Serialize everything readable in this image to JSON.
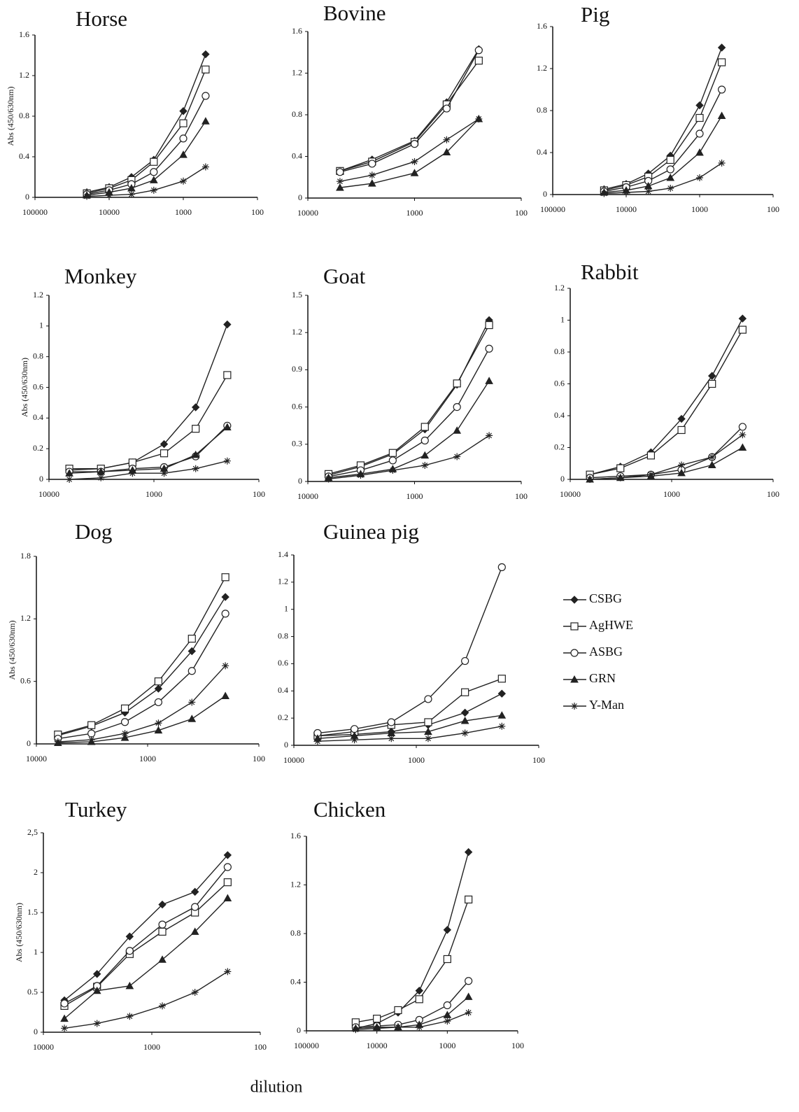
{
  "xlabel": "dilution",
  "chart_data": [
    {
      "type": "line",
      "title": "Horse",
      "ylabel": "Abs (450/630nm)",
      "xlog": true,
      "x": [
        20000,
        10000,
        5000,
        2500,
        1000,
        500
      ],
      "xlim": [
        100000,
        100
      ],
      "xticks": [
        100000,
        10000,
        1000,
        100
      ],
      "ylim": [
        0,
        1.6
      ],
      "yticks": [
        0,
        0.4,
        0.8,
        1.2,
        1.6
      ],
      "series": [
        {
          "name": "CSBG",
          "color": "#222",
          "marker": "diamond",
          "values": [
            0.05,
            0.1,
            0.2,
            0.37,
            0.85,
            1.41
          ]
        },
        {
          "name": "AgHWE",
          "color": "#222",
          "marker": "square",
          "values": [
            0.04,
            0.09,
            0.17,
            0.35,
            0.73,
            1.26
          ]
        },
        {
          "name": "ASBG",
          "color": "#222",
          "marker": "circle",
          "values": [
            0.03,
            0.07,
            0.13,
            0.25,
            0.58,
            1.0
          ]
        },
        {
          "name": "GRN",
          "color": "#222",
          "marker": "triangle",
          "values": [
            0.02,
            0.05,
            0.09,
            0.17,
            0.42,
            0.75
          ]
        },
        {
          "name": "Y-Man",
          "color": "#222",
          "marker": "star",
          "values": [
            0.01,
            0.02,
            0.03,
            0.07,
            0.16,
            0.3
          ]
        }
      ]
    },
    {
      "type": "line",
      "title": "Bovine",
      "xlog": true,
      "x": [
        5000,
        2500,
        1000,
        500,
        250
      ],
      "xlim": [
        10000,
        100
      ],
      "xticks": [
        10000,
        1000,
        100
      ],
      "ylim": [
        0,
        1.6
      ],
      "yticks": [
        0,
        0.4,
        0.8,
        1.2,
        1.6
      ],
      "series": [
        {
          "name": "CSBG",
          "color": "#222",
          "marker": "diamond",
          "values": [
            0.26,
            0.37,
            0.55,
            0.92,
            1.43
          ]
        },
        {
          "name": "AgHWE",
          "color": "#222",
          "marker": "square",
          "values": [
            0.26,
            0.35,
            0.54,
            0.9,
            1.32
          ]
        },
        {
          "name": "ASBG",
          "color": "#222",
          "marker": "circle",
          "values": [
            0.25,
            0.33,
            0.52,
            0.86,
            1.42
          ]
        },
        {
          "name": "GRN",
          "color": "#222",
          "marker": "triangle",
          "values": [
            0.1,
            0.14,
            0.24,
            0.44,
            0.76
          ]
        },
        {
          "name": "Y-Man",
          "color": "#222",
          "marker": "star",
          "values": [
            0.16,
            0.22,
            0.35,
            0.56,
            0.76
          ]
        }
      ]
    },
    {
      "type": "line",
      "title": "Pig",
      "xlog": true,
      "x": [
        20000,
        10000,
        5000,
        2500,
        1000,
        500
      ],
      "xlim": [
        100000,
        100
      ],
      "xticks": [
        100000,
        10000,
        1000,
        100
      ],
      "ylim": [
        0,
        1.6
      ],
      "yticks": [
        0,
        0.4,
        0.8,
        1.2,
        1.6
      ],
      "series": [
        {
          "name": "CSBG",
          "color": "#222",
          "marker": "diamond",
          "values": [
            0.05,
            0.1,
            0.2,
            0.37,
            0.85,
            1.4
          ]
        },
        {
          "name": "AgHWE",
          "color": "#222",
          "marker": "square",
          "values": [
            0.04,
            0.09,
            0.17,
            0.33,
            0.73,
            1.26
          ]
        },
        {
          "name": "ASBG",
          "color": "#222",
          "marker": "circle",
          "values": [
            0.03,
            0.07,
            0.13,
            0.24,
            0.58,
            1.0
          ]
        },
        {
          "name": "GRN",
          "color": "#222",
          "marker": "triangle",
          "values": [
            0.02,
            0.04,
            0.08,
            0.16,
            0.4,
            0.75
          ]
        },
        {
          "name": "Y-Man",
          "color": "#222",
          "marker": "star",
          "values": [
            0.01,
            0.02,
            0.03,
            0.06,
            0.16,
            0.3
          ]
        }
      ]
    },
    {
      "type": "line",
      "title": "Monkey",
      "ylabel": "Abs (450/630nm)",
      "xlog": true,
      "x": [
        6400,
        3200,
        1600,
        800,
        400,
        200
      ],
      "xlim": [
        10000,
        100
      ],
      "xticks": [
        10000,
        1000,
        100
      ],
      "ylim": [
        0,
        1.2
      ],
      "yticks": [
        0,
        0.2,
        0.4,
        0.6,
        0.8,
        1,
        1.2
      ],
      "series": [
        {
          "name": "CSBG",
          "color": "#222",
          "marker": "diamond",
          "values": [
            0.06,
            0.07,
            0.11,
            0.23,
            0.47,
            1.01
          ]
        },
        {
          "name": "AgHWE",
          "color": "#222",
          "marker": "square",
          "values": [
            0.07,
            0.07,
            0.11,
            0.17,
            0.33,
            0.68
          ]
        },
        {
          "name": "ASBG",
          "color": "#222",
          "marker": "circle",
          "values": [
            0.05,
            0.05,
            0.07,
            0.08,
            0.15,
            0.35
          ]
        },
        {
          "name": "GRN",
          "color": "#222",
          "marker": "triangle",
          "values": [
            0.04,
            0.05,
            0.06,
            0.07,
            0.16,
            0.34
          ]
        },
        {
          "name": "Y-Man",
          "color": "#222",
          "marker": "star",
          "values": [
            0,
            0.01,
            0.04,
            0.04,
            0.07,
            0.12
          ]
        }
      ]
    },
    {
      "type": "line",
      "title": "Goat",
      "xlog": true,
      "x": [
        6400,
        3200,
        1600,
        800,
        400,
        200
      ],
      "xlim": [
        10000,
        100
      ],
      "xticks": [
        10000,
        1000,
        100
      ],
      "ylim": [
        0,
        1.5
      ],
      "yticks": [
        0,
        0.3,
        0.6,
        0.9,
        1.2,
        1.5
      ],
      "series": [
        {
          "name": "CSBG",
          "color": "#222",
          "marker": "diamond",
          "values": [
            0.05,
            0.12,
            0.22,
            0.42,
            0.78,
            1.3
          ]
        },
        {
          "name": "AgHWE",
          "color": "#222",
          "marker": "square",
          "values": [
            0.06,
            0.13,
            0.23,
            0.44,
            0.79,
            1.26
          ]
        },
        {
          "name": "ASBG",
          "color": "#222",
          "marker": "circle",
          "values": [
            0.04,
            0.09,
            0.17,
            0.33,
            0.6,
            1.07
          ]
        },
        {
          "name": "GRN",
          "color": "#222",
          "marker": "triangle",
          "values": [
            0.03,
            0.06,
            0.1,
            0.21,
            0.41,
            0.81
          ]
        },
        {
          "name": "Y-Man",
          "color": "#222",
          "marker": "star",
          "values": [
            0.02,
            0.05,
            0.09,
            0.13,
            0.2,
            0.37
          ]
        }
      ]
    },
    {
      "type": "line",
      "title": "Rabbit",
      "xlog": true,
      "x": [
        6400,
        3200,
        1600,
        800,
        400,
        200
      ],
      "xlim": [
        10000,
        100
      ],
      "xticks": [
        10000,
        1000,
        100
      ],
      "ylim": [
        0,
        1.2
      ],
      "yticks": [
        0,
        0.2,
        0.4,
        0.6,
        0.8,
        1,
        1.2
      ],
      "series": [
        {
          "name": "CSBG",
          "color": "#222",
          "marker": "diamond",
          "values": [
            0.03,
            0.08,
            0.17,
            0.38,
            0.65,
            1.01
          ]
        },
        {
          "name": "AgHWE",
          "color": "#222",
          "marker": "square",
          "values": [
            0.03,
            0.07,
            0.15,
            0.31,
            0.6,
            0.94
          ]
        },
        {
          "name": "ASBG",
          "color": "#222",
          "marker": "circle",
          "values": [
            0.01,
            0.02,
            0.03,
            0.06,
            0.14,
            0.33
          ]
        },
        {
          "name": "GRN",
          "color": "#222",
          "marker": "triangle",
          "values": [
            0,
            0.01,
            0.02,
            0.04,
            0.09,
            0.2
          ]
        },
        {
          "name": "Y-Man",
          "color": "#222",
          "marker": "star",
          "values": [
            0,
            0.01,
            0.03,
            0.09,
            0.14,
            0.28
          ]
        }
      ]
    },
    {
      "type": "line",
      "title": "Dog",
      "ylabel": "Abs (450/630nm)",
      "xlog": true,
      "x": [
        6400,
        3200,
        1600,
        800,
        400,
        200
      ],
      "xlim": [
        10000,
        100
      ],
      "xticks": [
        10000,
        1000,
        100
      ],
      "ylim": [
        0,
        1.8
      ],
      "yticks": [
        0,
        0.6,
        1.2,
        1.8
      ],
      "series": [
        {
          "name": "CSBG",
          "color": "#222",
          "marker": "diamond",
          "values": [
            0.08,
            0.17,
            0.3,
            0.53,
            0.89,
            1.41
          ]
        },
        {
          "name": "AgHWE",
          "color": "#222",
          "marker": "square",
          "values": [
            0.09,
            0.18,
            0.34,
            0.6,
            1.01,
            1.6
          ]
        },
        {
          "name": "ASBG",
          "color": "#222",
          "marker": "circle",
          "values": [
            0.05,
            0.1,
            0.21,
            0.4,
            0.7,
            1.25
          ]
        },
        {
          "name": "GRN",
          "color": "#222",
          "marker": "triangle",
          "values": [
            0.01,
            0.02,
            0.06,
            0.13,
            0.24,
            0.46
          ]
        },
        {
          "name": "Y-Man",
          "color": "#222",
          "marker": "star",
          "values": [
            0.02,
            0.04,
            0.1,
            0.2,
            0.4,
            0.75
          ]
        }
      ]
    },
    {
      "type": "line",
      "title": "Guinea pig",
      "xlog": true,
      "x": [
        6400,
        3200,
        1600,
        800,
        400,
        200
      ],
      "xlim": [
        10000,
        100
      ],
      "xticks": [
        10000,
        1000,
        100
      ],
      "ylim": [
        0,
        1.4
      ],
      "yticks": [
        0,
        0.2,
        0.4,
        0.6,
        0.8,
        1,
        1.2,
        1.4
      ],
      "series": [
        {
          "name": "CSBG",
          "color": "#222",
          "marker": "diamond",
          "values": [
            0.07,
            0.08,
            0.1,
            0.15,
            0.24,
            0.38
          ]
        },
        {
          "name": "AgHWE",
          "color": "#222",
          "marker": "square",
          "values": [
            0.07,
            0.1,
            0.15,
            0.17,
            0.39,
            0.49
          ]
        },
        {
          "name": "ASBG",
          "color": "#222",
          "marker": "circle",
          "values": [
            0.09,
            0.12,
            0.17,
            0.34,
            0.62,
            1.31
          ]
        },
        {
          "name": "GRN",
          "color": "#222",
          "marker": "triangle",
          "values": [
            0.05,
            0.07,
            0.09,
            0.1,
            0.18,
            0.22
          ]
        },
        {
          "name": "Y-Man",
          "color": "#222",
          "marker": "star",
          "values": [
            0.03,
            0.04,
            0.05,
            0.05,
            0.09,
            0.14
          ]
        }
      ]
    },
    {
      "type": "line",
      "title": "Turkey",
      "ylabel": "Abs (450/630nm)",
      "xlog": true,
      "x": [
        6400,
        3200,
        1600,
        800,
        400,
        200
      ],
      "xlim": [
        10000,
        100
      ],
      "xticks": [
        10000,
        1000,
        100
      ],
      "ylim": [
        0,
        2.5
      ],
      "yticks": [
        0,
        0.5,
        1,
        1.5,
        2,
        {
          "value": 2.5,
          "label": "2,5"
        }
      ],
      "series": [
        {
          "name": "CSBG",
          "color": "#222",
          "marker": "diamond",
          "values": [
            0.4,
            0.73,
            1.2,
            1.6,
            1.76,
            2.22
          ]
        },
        {
          "name": "AgHWE",
          "color": "#222",
          "marker": "square",
          "values": [
            0.33,
            0.57,
            0.98,
            1.26,
            1.5,
            1.88
          ]
        },
        {
          "name": "ASBG",
          "color": "#222",
          "marker": "circle",
          "values": [
            0.36,
            0.58,
            1.02,
            1.35,
            1.57,
            2.07
          ]
        },
        {
          "name": "GRN",
          "color": "#222",
          "marker": "triangle",
          "values": [
            0.17,
            0.52,
            0.58,
            0.91,
            1.26,
            1.68
          ]
        },
        {
          "name": "Y-Man",
          "color": "#222",
          "marker": "star",
          "values": [
            0.05,
            0.11,
            0.2,
            0.33,
            0.5,
            0.76
          ]
        }
      ]
    },
    {
      "type": "line",
      "title": "Chicken",
      "xlog": true,
      "x": [
        20000,
        10000,
        5000,
        2500,
        1000,
        500
      ],
      "xlim": [
        100000,
        100
      ],
      "xticks": [
        100000,
        10000,
        1000,
        100
      ],
      "ylim": [
        0,
        1.6
      ],
      "yticks": [
        0,
        0.4,
        0.8,
        1.2,
        1.6
      ],
      "series": [
        {
          "name": "CSBG",
          "color": "#222",
          "marker": "diamond",
          "values": [
            0.02,
            0.06,
            0.15,
            0.33,
            0.83,
            1.47
          ]
        },
        {
          "name": "AgHWE",
          "color": "#222",
          "marker": "square",
          "values": [
            0.07,
            0.1,
            0.17,
            0.26,
            0.59,
            1.08
          ]
        },
        {
          "name": "ASBG",
          "color": "#222",
          "marker": "circle",
          "values": [
            0.03,
            0.04,
            0.05,
            0.09,
            0.21,
            0.41
          ]
        },
        {
          "name": "GRN",
          "color": "#222",
          "marker": "triangle",
          "values": [
            0.02,
            0.03,
            0.03,
            0.05,
            0.13,
            0.28
          ]
        },
        {
          "name": "Y-Man",
          "color": "#222",
          "marker": "star",
          "values": [
            0.01,
            0.02,
            0.03,
            0.03,
            0.08,
            0.15
          ]
        }
      ]
    }
  ]
}
